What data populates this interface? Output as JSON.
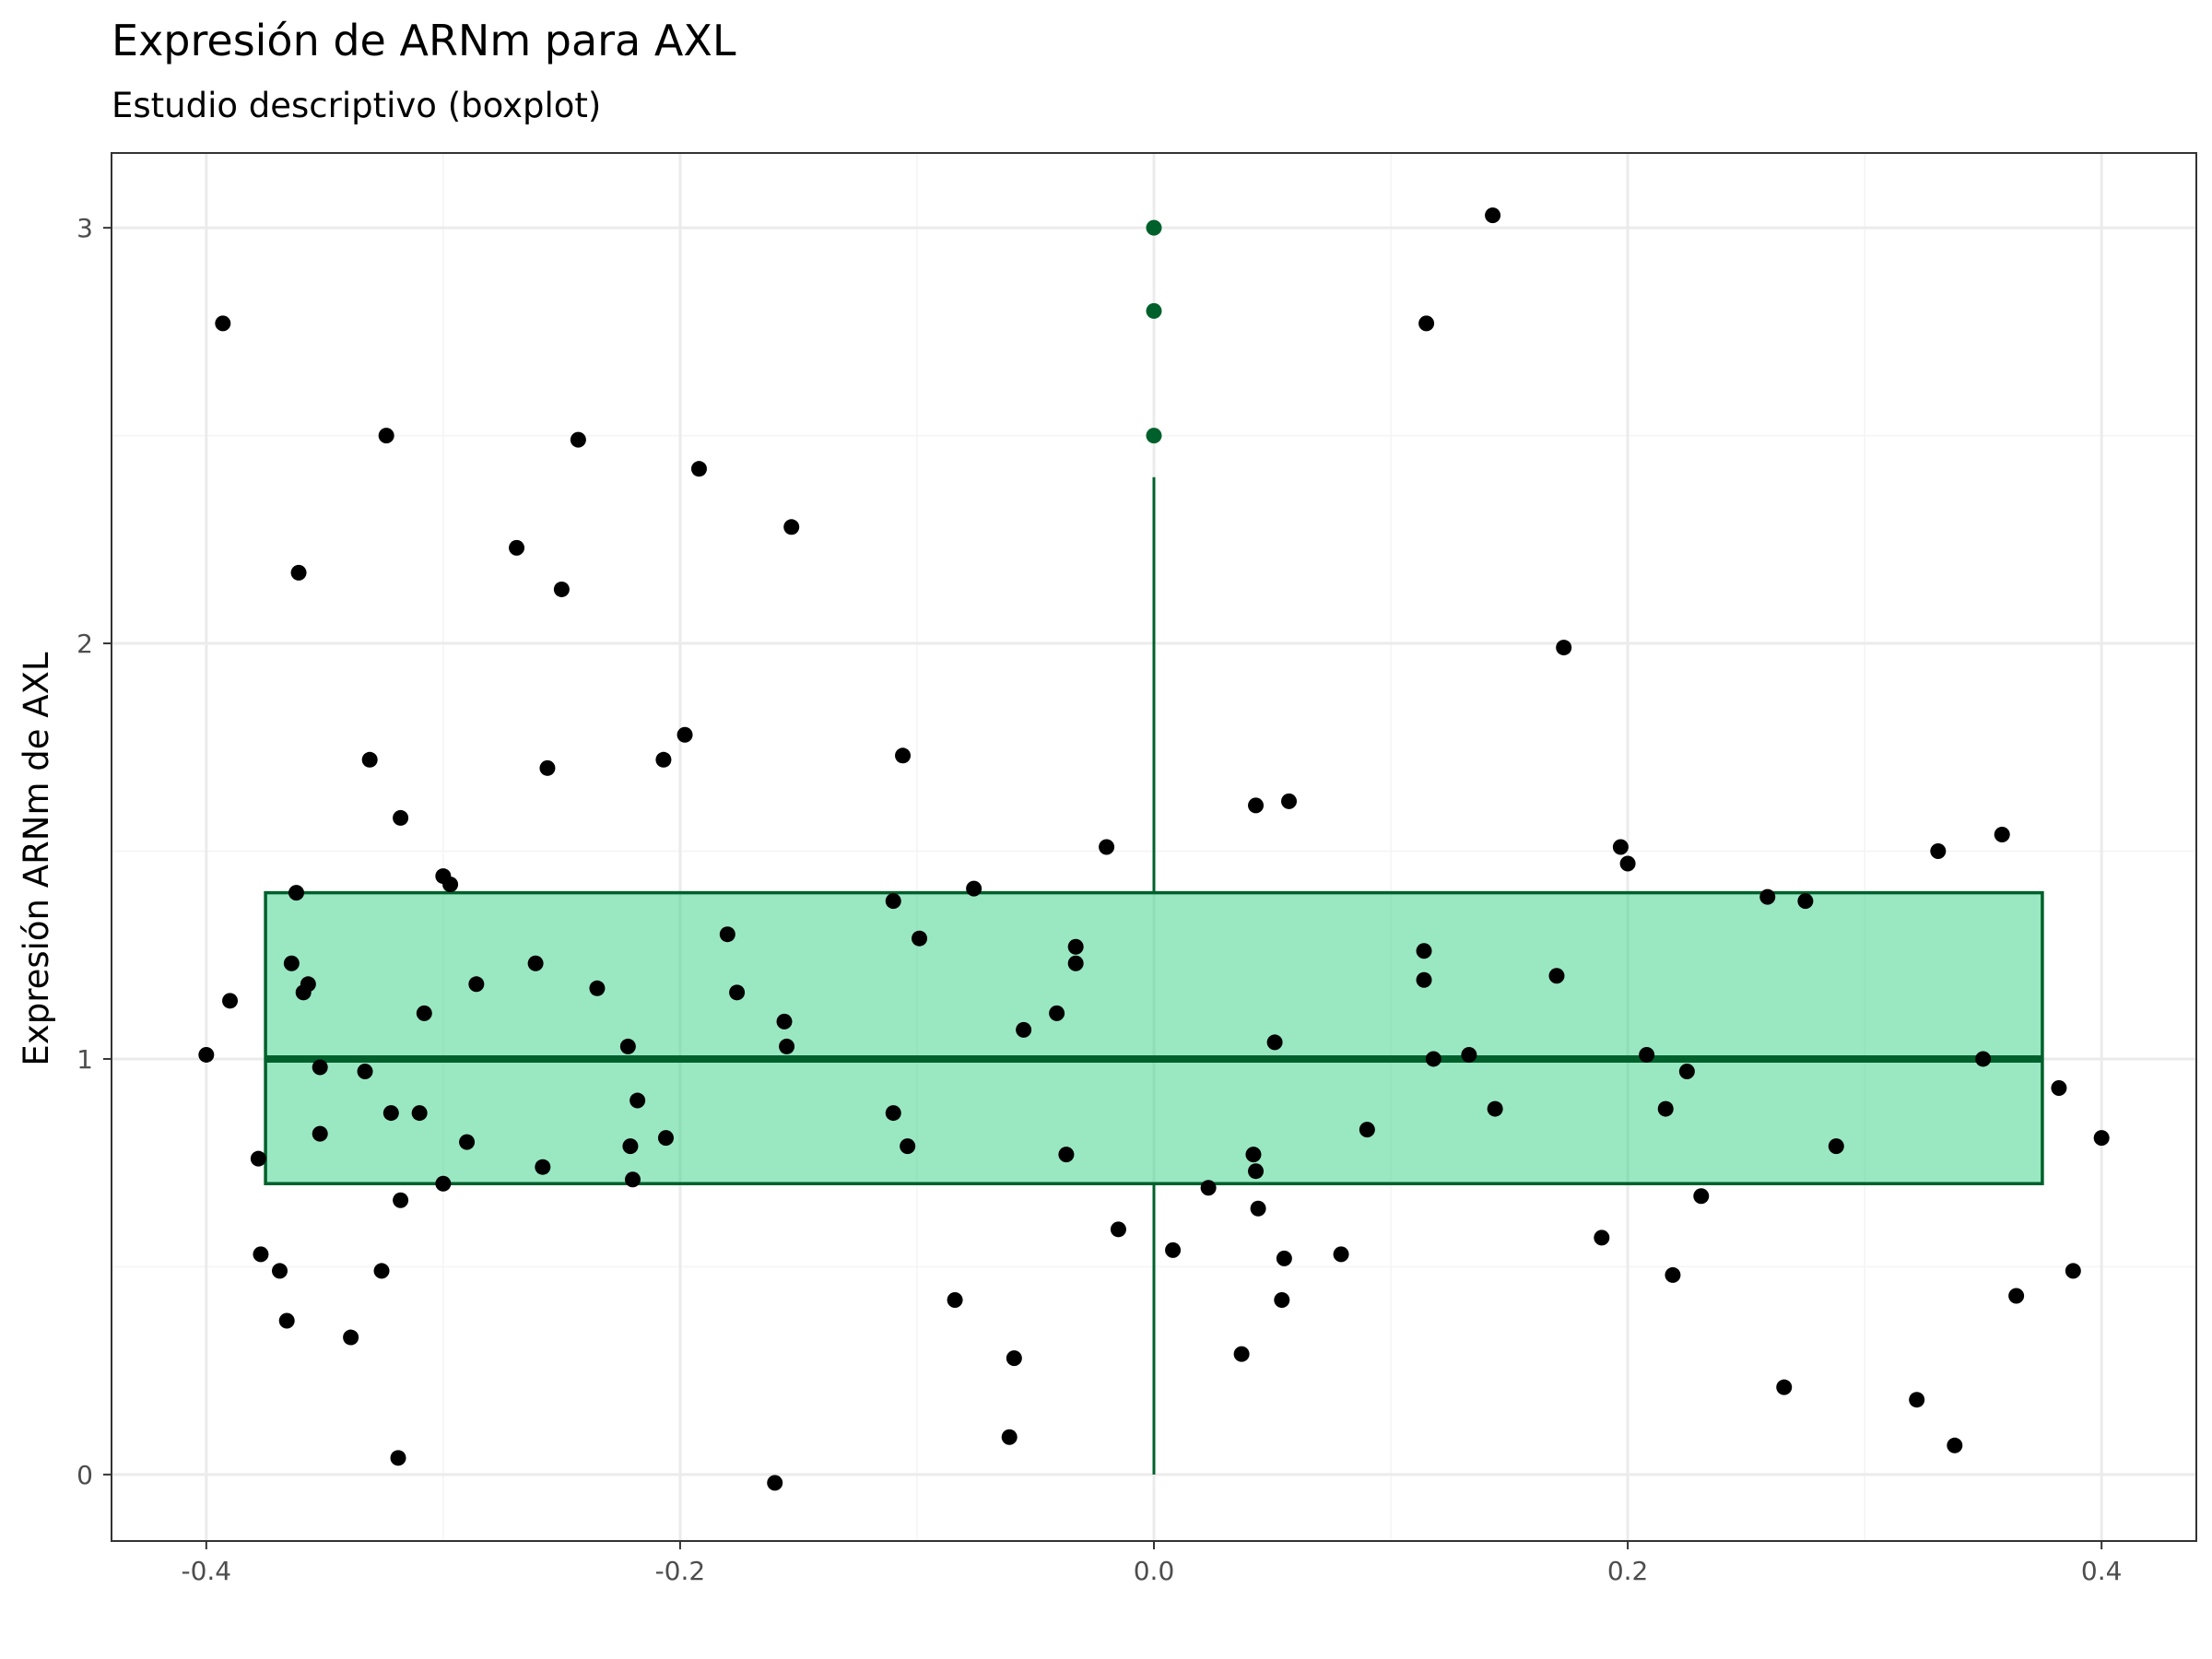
{
  "colors": {
    "box_fill": "#3ED38A",
    "box_stroke": "#00602B",
    "outlier": "#00602B",
    "point": "#000000",
    "grid_major": "#EBEBEB",
    "grid_minor": "#F4F4F4",
    "panel_border": "#333333"
  },
  "chart_data": {
    "type": "boxplot",
    "title": "Expresión de ARNm para AXL",
    "subtitle": "Estudio descriptivo (boxplot)",
    "xlabel": "",
    "ylabel": "Expresión ARNm de AXL",
    "xlim": [
      -0.44,
      0.44
    ],
    "ylim": [
      -0.16,
      3.18
    ],
    "x_ticks": [
      -0.4,
      -0.2,
      0.0,
      0.2,
      0.4
    ],
    "x_tick_labels": [
      "-0.4",
      "-0.2",
      "0.0",
      "0.2",
      "0.4"
    ],
    "y_ticks": [
      0,
      1,
      2,
      3
    ],
    "y_tick_labels": [
      "0",
      "1",
      "2",
      "3"
    ],
    "grid": true,
    "box": {
      "x_center": 0,
      "half_width": 0.375,
      "lower_whisker": 0.0,
      "q1": 0.7,
      "median": 1.0,
      "q3": 1.4,
      "upper_whisker": 2.4,
      "outliers": [
        2.5,
        2.8,
        3.0
      ]
    },
    "jitter_points": [
      [
        -0.4,
        1.01
      ],
      [
        -0.393,
        2.77
      ],
      [
        -0.39,
        1.14
      ],
      [
        -0.378,
        0.76
      ],
      [
        -0.377,
        0.53
      ],
      [
        -0.369,
        0.49
      ],
      [
        -0.366,
        0.37
      ],
      [
        -0.364,
        1.23
      ],
      [
        -0.362,
        1.4
      ],
      [
        -0.361,
        2.17
      ],
      [
        -0.359,
        1.16
      ],
      [
        -0.357,
        1.18
      ],
      [
        -0.352,
        0.98
      ],
      [
        -0.352,
        0.82
      ],
      [
        -0.339,
        0.33
      ],
      [
        -0.333,
        0.97
      ],
      [
        -0.331,
        1.72
      ],
      [
        -0.326,
        0.49
      ],
      [
        -0.324,
        2.5
      ],
      [
        -0.322,
        0.87
      ],
      [
        -0.319,
        0.04
      ],
      [
        -0.318,
        1.58
      ],
      [
        -0.318,
        0.66
      ],
      [
        -0.31,
        0.87
      ],
      [
        -0.308,
        1.11
      ],
      [
        -0.3,
        1.44
      ],
      [
        -0.3,
        0.7
      ],
      [
        -0.297,
        1.42
      ],
      [
        -0.29,
        0.8
      ],
      [
        -0.286,
        1.18
      ],
      [
        -0.269,
        2.23
      ],
      [
        -0.261,
        1.23
      ],
      [
        -0.258,
        0.74
      ],
      [
        -0.256,
        1.7
      ],
      [
        -0.25,
        2.13
      ],
      [
        -0.243,
        2.49
      ],
      [
        -0.235,
        1.17
      ],
      [
        -0.222,
        1.03
      ],
      [
        -0.221,
        0.79
      ],
      [
        -0.22,
        0.71
      ],
      [
        -0.218,
        0.9
      ],
      [
        -0.207,
        1.72
      ],
      [
        -0.206,
        0.81
      ],
      [
        -0.198,
        1.78
      ],
      [
        -0.192,
        2.42
      ],
      [
        -0.18,
        1.3
      ],
      [
        -0.176,
        1.16
      ],
      [
        -0.156,
        1.09
      ],
      [
        -0.155,
        1.03
      ],
      [
        -0.153,
        2.28
      ],
      [
        -0.16,
        -0.02
      ],
      [
        -0.11,
        1.38
      ],
      [
        -0.11,
        0.87
      ],
      [
        -0.106,
        1.73
      ],
      [
        -0.104,
        0.79
      ],
      [
        -0.099,
        1.29
      ],
      [
        -0.084,
        0.42
      ],
      [
        -0.076,
        1.41
      ],
      [
        -0.061,
        0.09
      ],
      [
        -0.059,
        0.28
      ],
      [
        -0.055,
        1.07
      ],
      [
        -0.041,
        1.11
      ],
      [
        -0.037,
        0.77
      ],
      [
        -0.033,
        1.27
      ],
      [
        -0.033,
        1.23
      ],
      [
        -0.02,
        1.51
      ],
      [
        -0.015,
        0.59
      ],
      [
        0.008,
        0.54
      ],
      [
        0.023,
        0.69
      ],
      [
        0.037,
        0.29
      ],
      [
        0.042,
        0.77
      ],
      [
        0.043,
        1.61
      ],
      [
        0.043,
        0.73
      ],
      [
        0.044,
        0.64
      ],
      [
        0.051,
        1.04
      ],
      [
        0.054,
        0.42
      ],
      [
        0.055,
        0.52
      ],
      [
        0.057,
        1.62
      ],
      [
        0.079,
        0.53
      ],
      [
        0.09,
        0.83
      ],
      [
        0.114,
        1.26
      ],
      [
        0.114,
        1.19
      ],
      [
        0.115,
        2.77
      ],
      [
        0.118,
        1.0
      ],
      [
        0.133,
        1.01
      ],
      [
        0.143,
        3.03
      ],
      [
        0.144,
        0.88
      ],
      [
        0.17,
        1.2
      ],
      [
        0.173,
        1.99
      ],
      [
        0.189,
        0.57
      ],
      [
        0.197,
        1.51
      ],
      [
        0.2,
        1.47
      ],
      [
        0.208,
        1.01
      ],
      [
        0.216,
        0.88
      ],
      [
        0.219,
        0.48
      ],
      [
        0.225,
        0.97
      ],
      [
        0.231,
        0.67
      ],
      [
        0.259,
        1.39
      ],
      [
        0.266,
        0.21
      ],
      [
        0.275,
        1.38
      ],
      [
        0.288,
        0.79
      ],
      [
        0.322,
        0.18
      ],
      [
        0.331,
        1.5
      ],
      [
        0.338,
        0.07
      ],
      [
        0.35,
        1.0
      ],
      [
        0.358,
        1.54
      ],
      [
        0.364,
        0.43
      ],
      [
        0.382,
        0.93
      ],
      [
        0.388,
        0.49
      ],
      [
        0.4,
        0.81
      ]
    ]
  }
}
